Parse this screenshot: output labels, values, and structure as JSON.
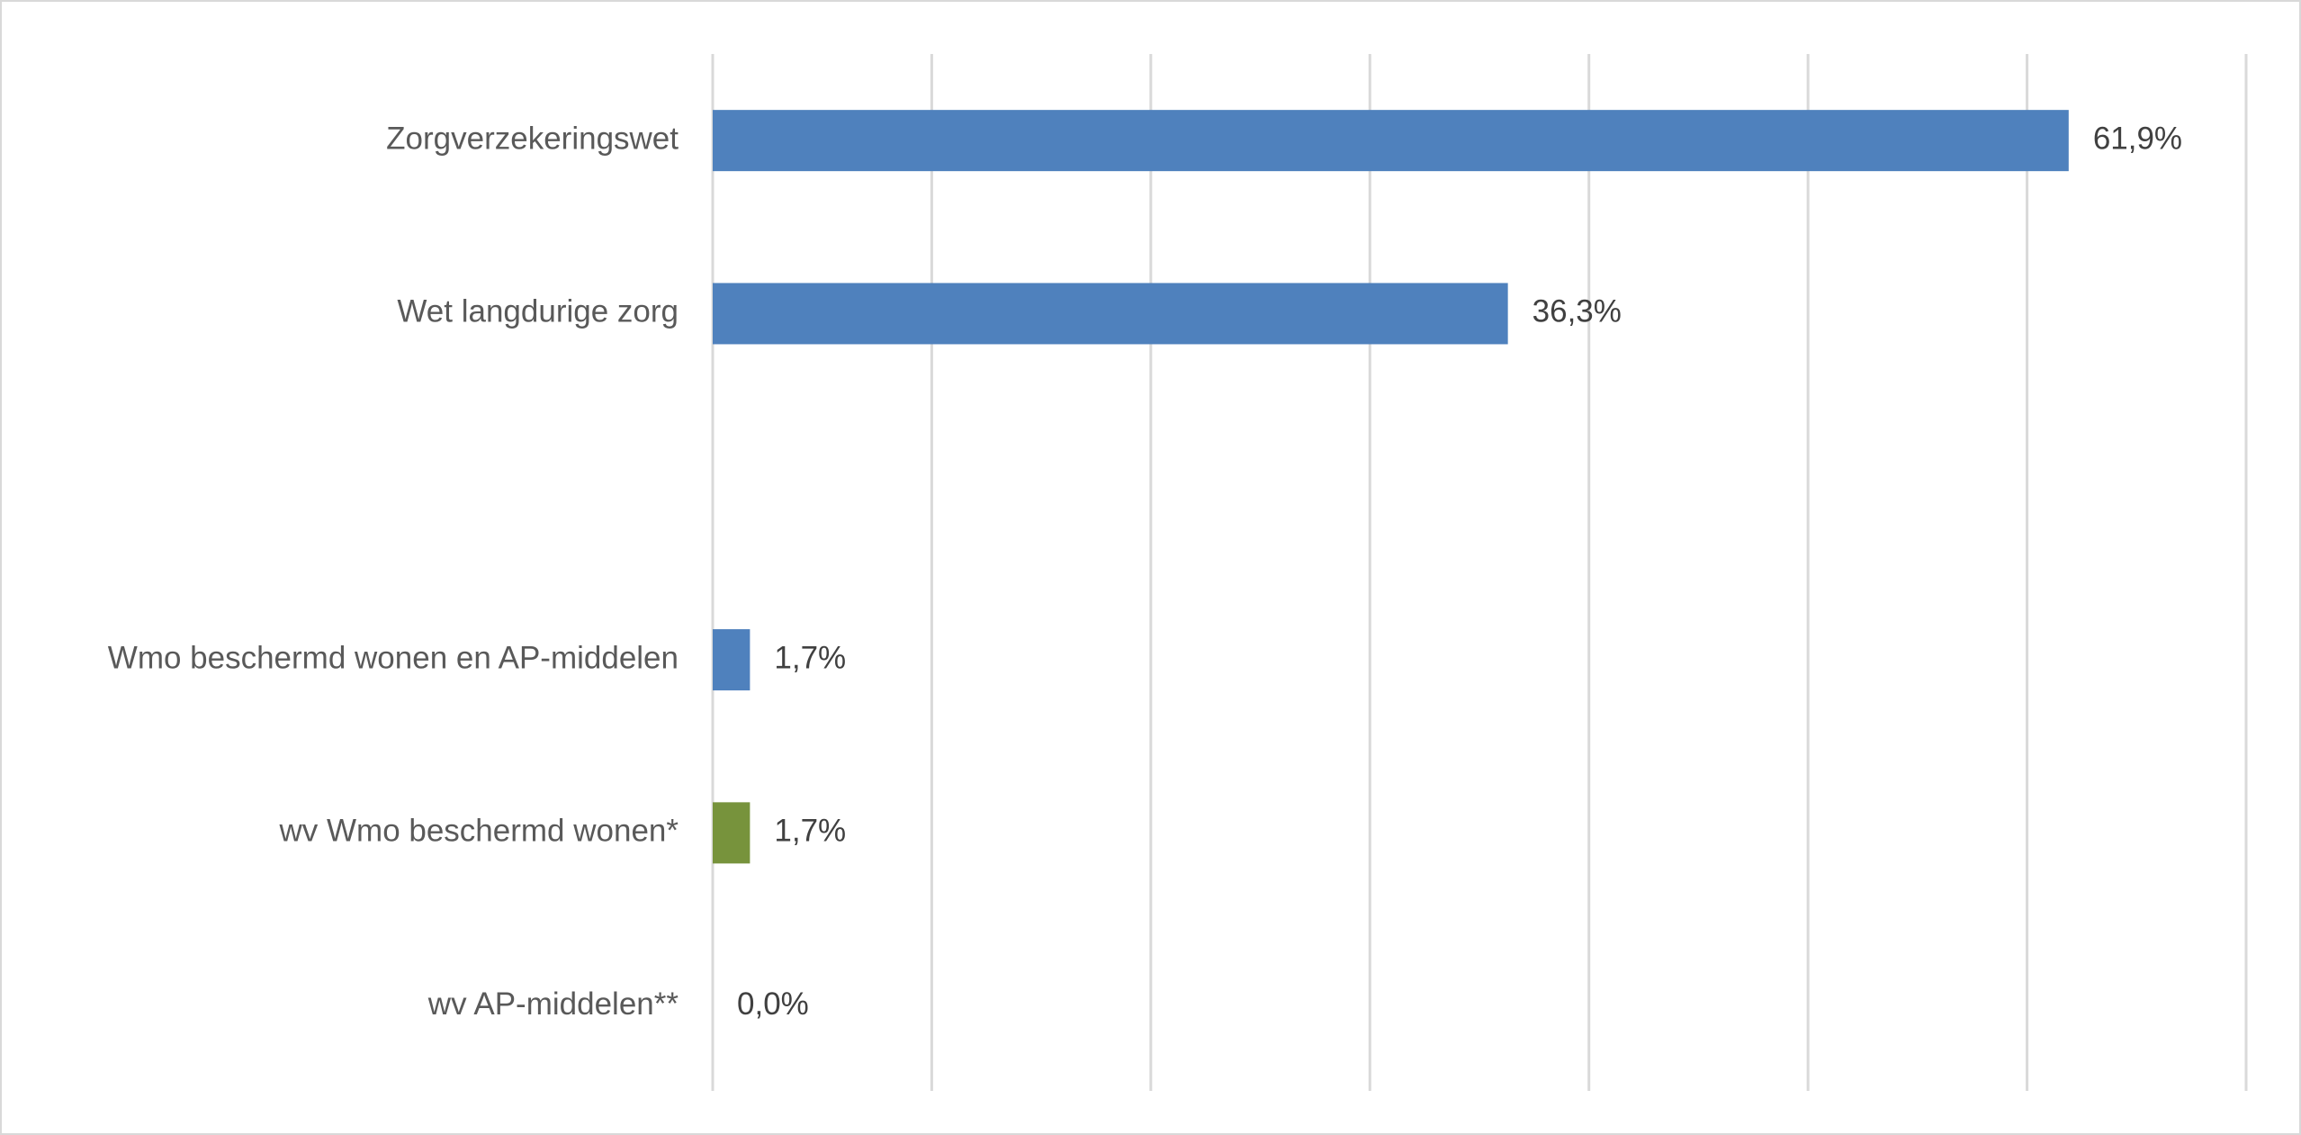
{
  "chart_data": {
    "type": "bar",
    "orientation": "horizontal",
    "categories": [
      "Zorgverzekeringswet",
      "Wet langdurige zorg",
      "",
      "Wmo beschermd wonen en AP-middelen",
      "wv Wmo beschermd wonen*",
      "wv AP-middelen**"
    ],
    "values": [
      61.9,
      36.3,
      null,
      1.7,
      1.7,
      0.0
    ],
    "data_labels": [
      "61,9%",
      "36,3%",
      "",
      "1,7%",
      "1,7%",
      "0,0%"
    ],
    "bar_colors": [
      "#4f81bd",
      "#4f81bd",
      "#4f81bd",
      "#4f81bd",
      "#77933c",
      "#4f81bd"
    ],
    "xlim": [
      0,
      70
    ],
    "x_gridline_step": 10,
    "x_tick_labels_visible": false,
    "grid": true,
    "legend": "none",
    "title": "",
    "xlabel": "",
    "ylabel": ""
  }
}
